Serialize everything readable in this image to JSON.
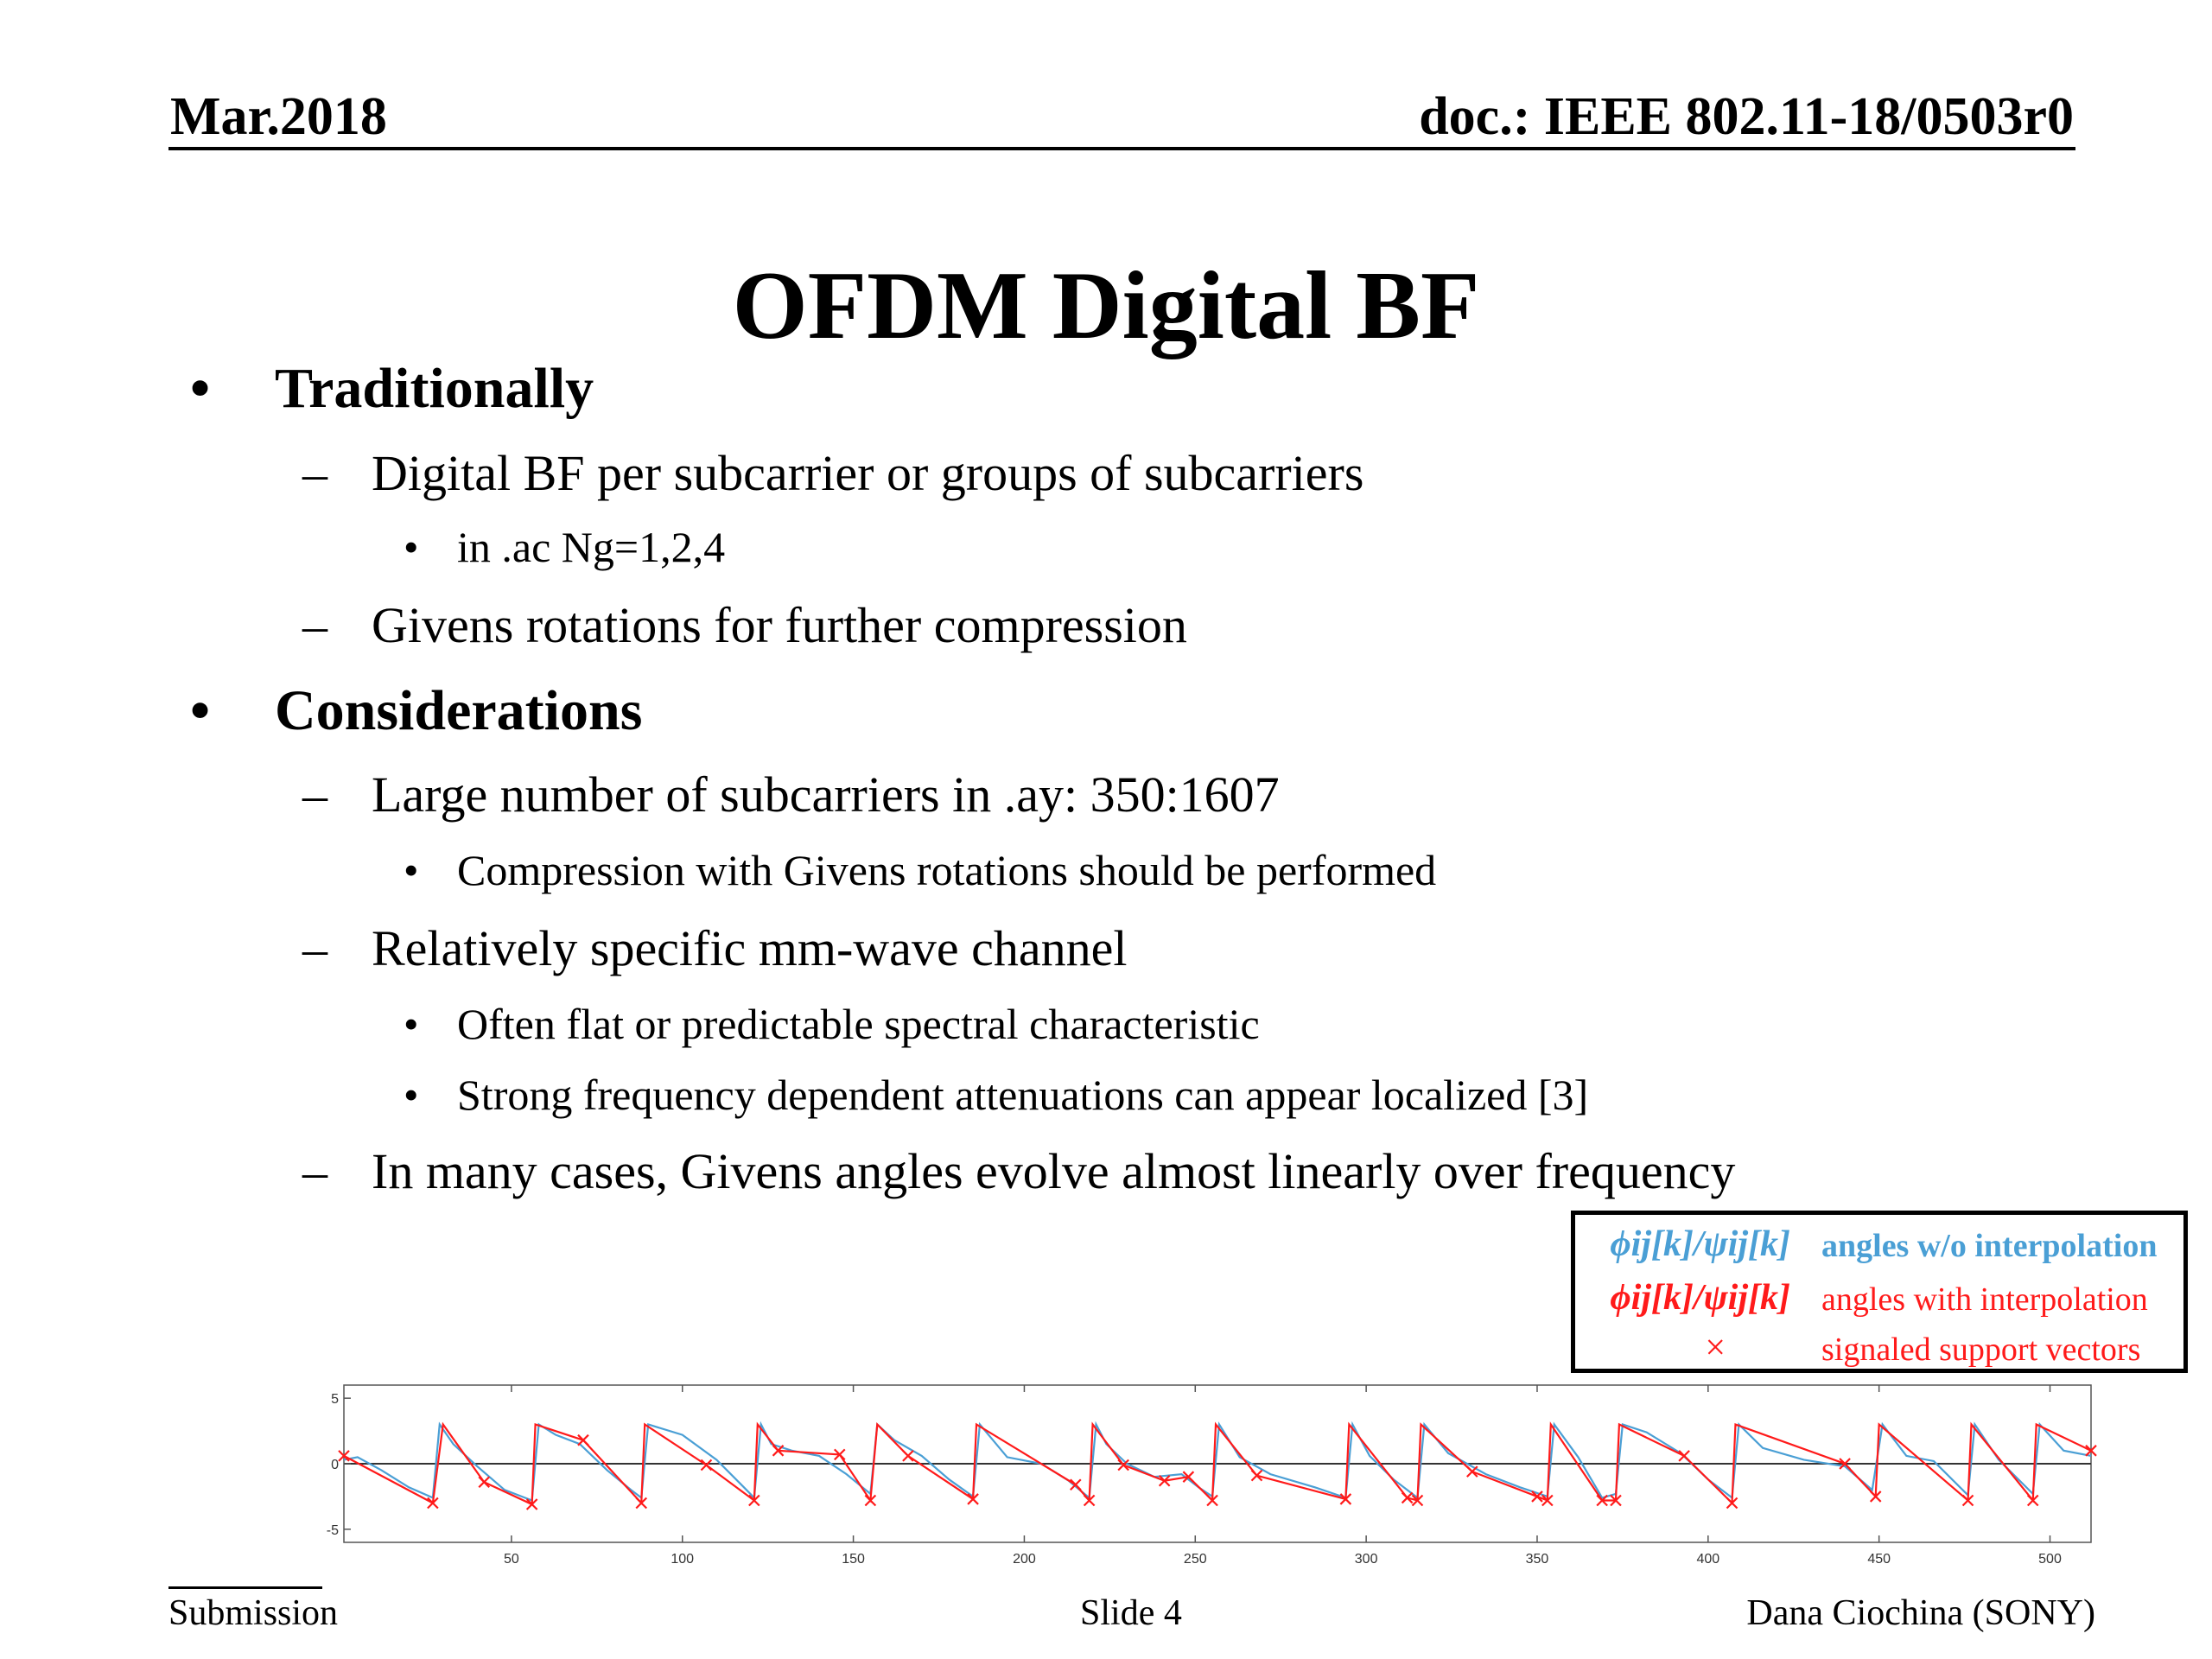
{
  "header": {
    "date": "Mar.2018",
    "doc_id": "doc.: IEEE 802.11-18/0503r0"
  },
  "title": "OFDM Digital BF",
  "bullets": [
    {
      "level": 1,
      "text": "Traditionally"
    },
    {
      "level": 2,
      "text": "Digital BF per subcarrier or groups of subcarriers"
    },
    {
      "level": 3,
      "text": "in .ac Ng=1,2,4"
    },
    {
      "level": 2,
      "text": "Givens rotations for further compression"
    },
    {
      "level": 1,
      "text": "Considerations"
    },
    {
      "level": 2,
      "text": "Large number of subcarriers in .ay: 350:1607"
    },
    {
      "level": 3,
      "text": "Compression with Givens rotations should be performed"
    },
    {
      "level": 2,
      "text": "Relatively specific mm-wave channel"
    },
    {
      "level": 3,
      "text": "Often flat or predictable spectral characteristic"
    },
    {
      "level": 3,
      "text": "Strong frequency dependent attenuations can appear localized [3]"
    },
    {
      "level": 2,
      "text": "In many cases, Givens angles evolve almost linearly over frequency"
    }
  ],
  "legend": {
    "items": [
      {
        "symbol": "ϕij[k]/ψij[k]",
        "label": "angles w/o interpolation",
        "color": "#4a9fd5"
      },
      {
        "symbol": "ϕij[k]/ψij[k]",
        "label": "angles with interpolation",
        "color": "#ff1a1a"
      },
      {
        "symbol": "×",
        "label": "signaled support vectors",
        "color": "#ff1a1a"
      }
    ]
  },
  "chart_data": {
    "type": "line",
    "xlim": [
      1,
      512
    ],
    "ylim": [
      -6,
      6
    ],
    "xticks": [
      50,
      100,
      150,
      200,
      250,
      300,
      350,
      400,
      450,
      500
    ],
    "yticks": [
      5,
      0,
      -5
    ],
    "grid": false,
    "series": [
      {
        "color": "#ff1a1a",
        "marker": "x",
        "support_points": [
          [
            1,
            0.6
          ],
          [
            27,
            -3.0
          ],
          [
            30,
            3.0
          ],
          [
            42,
            -1.4
          ],
          [
            56,
            -3.1
          ],
          [
            57,
            3.0
          ],
          [
            71,
            1.8
          ],
          [
            88,
            -3.0
          ],
          [
            89,
            3.0
          ],
          [
            107,
            -0.1
          ],
          [
            121,
            -2.8
          ],
          [
            122,
            3.0
          ],
          [
            128,
            1.0
          ],
          [
            146,
            0.7
          ],
          [
            155,
            -2.8
          ],
          [
            157,
            3.0
          ],
          [
            166,
            0.6
          ],
          [
            185,
            -2.7
          ],
          [
            186,
            3.0
          ],
          [
            215,
            -1.6
          ],
          [
            219,
            -2.8
          ],
          [
            220,
            3.0
          ],
          [
            229,
            -0.1
          ],
          [
            241,
            -1.3
          ],
          [
            248,
            -1.0
          ],
          [
            255,
            -2.8
          ],
          [
            256,
            3.0
          ],
          [
            268,
            -0.9
          ],
          [
            294,
            -2.7
          ],
          [
            295,
            3.0
          ],
          [
            312,
            -2.6
          ],
          [
            315,
            -2.8
          ],
          [
            316,
            3.0
          ],
          [
            331,
            -0.6
          ],
          [
            350,
            -2.5
          ],
          [
            353,
            -2.8
          ],
          [
            354,
            3.0
          ],
          [
            369,
            -2.8
          ],
          [
            373,
            -2.8
          ],
          [
            374,
            3.0
          ],
          [
            393,
            0.6
          ],
          [
            407,
            -3.0
          ],
          [
            408,
            3.0
          ],
          [
            440,
            0.0
          ],
          [
            449,
            -2.5
          ],
          [
            450,
            3.0
          ],
          [
            476,
            -2.8
          ],
          [
            477,
            3.0
          ],
          [
            495,
            -2.8
          ],
          [
            496,
            3.0
          ],
          [
            512,
            1.0
          ]
        ]
      },
      {
        "color": "#4a9fd5",
        "marker": "none",
        "points": [
          [
            1,
            0.3
          ],
          [
            5,
            0.5
          ],
          [
            12,
            -0.5
          ],
          [
            20,
            -1.8
          ],
          [
            27,
            -2.6
          ],
          [
            29,
            3.0
          ],
          [
            33,
            1.5
          ],
          [
            40,
            -0.2
          ],
          [
            48,
            -2.0
          ],
          [
            56,
            -2.8
          ],
          [
            58,
            3.0
          ],
          [
            63,
            2.2
          ],
          [
            70,
            1.5
          ],
          [
            78,
            -0.5
          ],
          [
            85,
            -2.0
          ],
          [
            88,
            -2.6
          ],
          [
            90,
            3.0
          ],
          [
            100,
            2.2
          ],
          [
            110,
            0.3
          ],
          [
            118,
            -1.8
          ],
          [
            121,
            -2.6
          ],
          [
            123,
            3.0
          ],
          [
            126,
            1.5
          ],
          [
            132,
            1.0
          ],
          [
            140,
            0.6
          ],
          [
            148,
            -0.8
          ],
          [
            155,
            -2.3
          ],
          [
            157,
            3.0
          ],
          [
            162,
            1.8
          ],
          [
            170,
            0.6
          ],
          [
            178,
            -1.2
          ],
          [
            185,
            -2.5
          ],
          [
            187,
            3.0
          ],
          [
            195,
            0.5
          ],
          [
            205,
            0.0
          ],
          [
            213,
            -1.3
          ],
          [
            219,
            -2.6
          ],
          [
            221,
            3.0
          ],
          [
            224,
            1.5
          ],
          [
            230,
            0.0
          ],
          [
            238,
            -1.0
          ],
          [
            246,
            -0.8
          ],
          [
            251,
            -1.8
          ],
          [
            255,
            -2.5
          ],
          [
            257,
            3.0
          ],
          [
            263,
            0.5
          ],
          [
            272,
            -0.8
          ],
          [
            285,
            -1.8
          ],
          [
            294,
            -2.6
          ],
          [
            296,
            3.0
          ],
          [
            301,
            0.6
          ],
          [
            308,
            -1.2
          ],
          [
            315,
            -2.6
          ],
          [
            317,
            3.0
          ],
          [
            324,
            0.8
          ],
          [
            335,
            -0.8
          ],
          [
            345,
            -1.8
          ],
          [
            353,
            -2.5
          ],
          [
            355,
            3.0
          ],
          [
            362,
            0.5
          ],
          [
            369,
            -2.6
          ],
          [
            373,
            -2.3
          ],
          [
            375,
            3.0
          ],
          [
            382,
            2.4
          ],
          [
            392,
            0.8
          ],
          [
            400,
            -1.2
          ],
          [
            407,
            -2.6
          ],
          [
            409,
            3.0
          ],
          [
            416,
            1.2
          ],
          [
            428,
            0.3
          ],
          [
            440,
            -0.2
          ],
          [
            448,
            -2.0
          ],
          [
            451,
            3.0
          ],
          [
            458,
            0.6
          ],
          [
            466,
            0.2
          ],
          [
            476,
            -2.4
          ],
          [
            478,
            3.0
          ],
          [
            485,
            0.3
          ],
          [
            495,
            -2.3
          ],
          [
            497,
            3.0
          ],
          [
            504,
            1.0
          ],
          [
            512,
            0.6
          ]
        ]
      }
    ]
  },
  "footer": {
    "left": "Submission",
    "center": "Slide 4",
    "right": "Dana Ciochina (SONY)"
  }
}
